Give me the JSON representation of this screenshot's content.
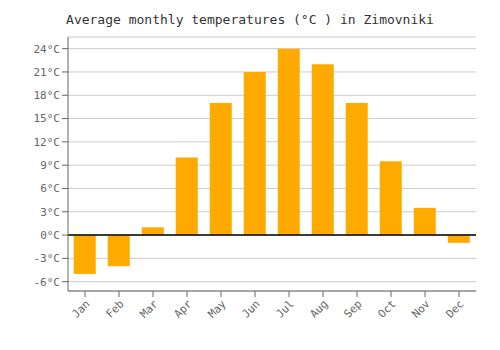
{
  "chart_data": {
    "type": "bar",
    "title": "Average monthly temperatures (°C ) in Zimovniki",
    "categories": [
      "Jan",
      "Feb",
      "Mar",
      "Apr",
      "May",
      "Jun",
      "Jul",
      "Aug",
      "Sep",
      "Oct",
      "Nov",
      "Dec"
    ],
    "values": [
      -5.0,
      -4.0,
      1.0,
      10.0,
      17.0,
      21.0,
      24.0,
      22.0,
      17.0,
      9.5,
      3.5,
      -1.0
    ],
    "color": "#FFAA00",
    "ylim": [
      -7.2,
      25.5
    ],
    "yticks": [
      {
        "value": -6,
        "label": "-6°C"
      },
      {
        "value": -3,
        "label": "-3°C"
      },
      {
        "value": 0,
        "label": "0°C"
      },
      {
        "value": 3,
        "label": "3°C"
      },
      {
        "value": 6,
        "label": "6°C"
      },
      {
        "value": 9,
        "label": "9°C"
      },
      {
        "value": 12,
        "label": "12°C"
      },
      {
        "value": 15,
        "label": "15°C"
      },
      {
        "value": 18,
        "label": "18°C"
      },
      {
        "value": 21,
        "label": "21°C"
      },
      {
        "value": 24,
        "label": "24°C"
      }
    ],
    "grid": true
  }
}
